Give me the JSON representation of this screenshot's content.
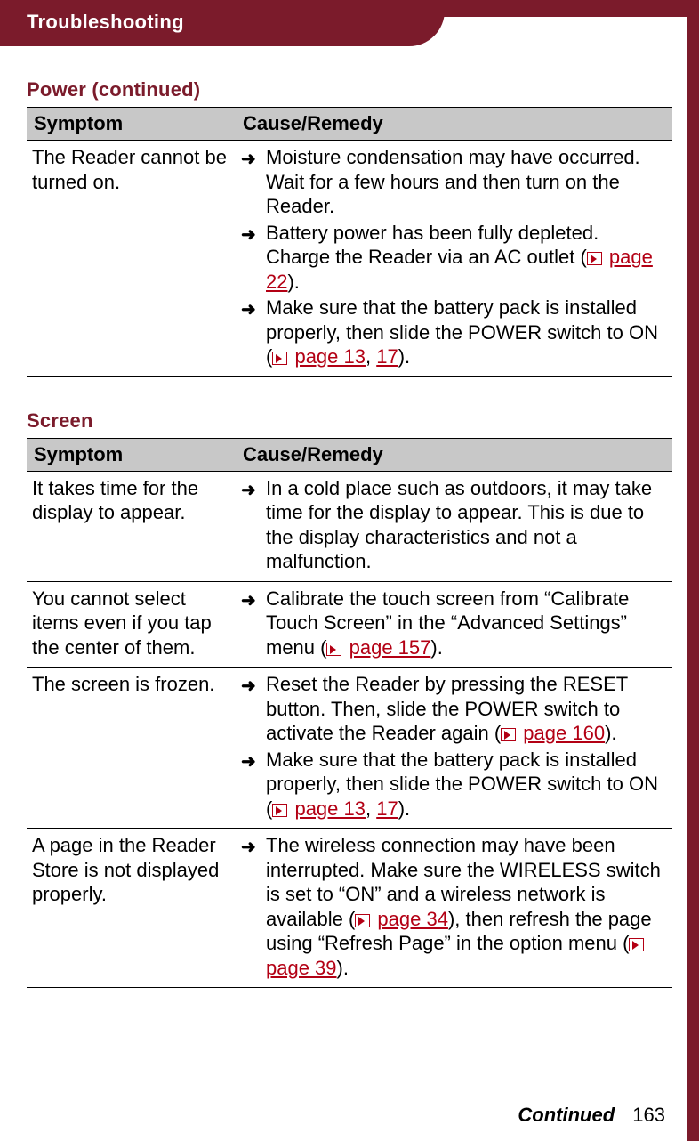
{
  "colors": {
    "brand": "#7b1b2b",
    "link": "#b30014",
    "header_bg": "#c8c8c8",
    "page_bg": "#ffffff",
    "text": "#000000"
  },
  "typography": {
    "body_fontsize_pt": 16,
    "title_fontsize_pt": 16,
    "font_family": "Arial"
  },
  "header": {
    "title": "Troubleshooting"
  },
  "sections": [
    {
      "title": "Power (continued)",
      "columns": [
        "Symptom",
        "Cause/Remedy"
      ],
      "rows": [
        {
          "symptom": "The Reader cannot be turned on.",
          "remedies": [
            {
              "segments": [
                {
                  "t": "Moisture condensation may have occurred. Wait for a few hours and then turn on the Reader."
                }
              ]
            },
            {
              "segments": [
                {
                  "t": "Battery power has been fully depleted. Charge the Reader via an AC outlet ("
                },
                {
                  "ref": "page 22"
                },
                {
                  "t": ")."
                }
              ]
            },
            {
              "segments": [
                {
                  "t": "Make sure that the battery pack is installed properly, then slide the POWER switch to ON ("
                },
                {
                  "ref": "page 13"
                },
                {
                  "t": ", "
                },
                {
                  "ref2": "17"
                },
                {
                  "t": ")."
                }
              ]
            }
          ]
        }
      ]
    },
    {
      "title": "Screen",
      "columns": [
        "Symptom",
        "Cause/Remedy"
      ],
      "rows": [
        {
          "symptom": "It takes time for the display to appear.",
          "remedies": [
            {
              "segments": [
                {
                  "t": "In a cold place such as outdoors, it may take time for the display to appear. This is due to the display characteristics and not a malfunction."
                }
              ]
            }
          ]
        },
        {
          "symptom": "You cannot select items even if you tap the center of them.",
          "remedies": [
            {
              "segments": [
                {
                  "t": "Calibrate the touch screen from “Calibrate Touch Screen” in the “Advanced Settings” menu ("
                },
                {
                  "ref": "page 157"
                },
                {
                  "t": ")."
                }
              ]
            }
          ]
        },
        {
          "symptom": "The screen is frozen.",
          "remedies": [
            {
              "segments": [
                {
                  "t": "Reset the Reader by pressing the RESET button. Then, slide the POWER switch to activate the Reader again ("
                },
                {
                  "ref": "page 160"
                },
                {
                  "t": ")."
                }
              ]
            },
            {
              "segments": [
                {
                  "t": "Make sure that the battery pack is installed properly, then slide the POWER switch to ON ("
                },
                {
                  "ref": "page 13"
                },
                {
                  "t": ", "
                },
                {
                  "ref2": "17"
                },
                {
                  "t": ")."
                }
              ]
            }
          ]
        },
        {
          "symptom": "A page in the Reader Store is not displayed properly.",
          "remedies": [
            {
              "segments": [
                {
                  "t": "The wireless connection may have been interrupted. Make sure the WIRELESS switch is set to “ON” and a wireless network is available ("
                },
                {
                  "ref": "page 34"
                },
                {
                  "t": "), then refresh the page using “Refresh Page” in the option menu ("
                },
                {
                  "ref": "page 39"
                },
                {
                  "t": ")."
                }
              ]
            }
          ]
        }
      ]
    }
  ],
  "footer": {
    "continued": "Continued",
    "page_number": "163"
  }
}
